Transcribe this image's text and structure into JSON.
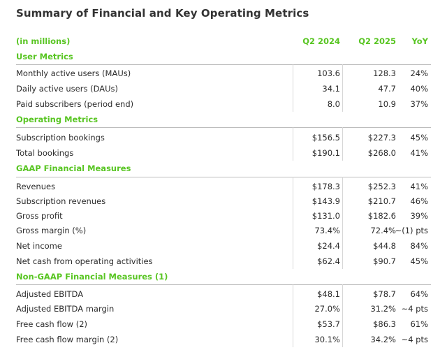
{
  "title": "Summary of Financial and Key Operating Metrics",
  "header": {
    "label": "(in millions)",
    "q2_2024": "Q2 2024",
    "q2_2025": "Q2 2025",
    "yoy": "YoY"
  },
  "sections": [
    {
      "name": "User Metrics",
      "rows": [
        {
          "label": "Monthly active users (MAUs)",
          "q2_2024": "103.6",
          "q2_2025": "128.3",
          "yoy": "24%"
        },
        {
          "label": "Daily active users (DAUs)",
          "q2_2024": "34.1",
          "q2_2025": "47.7",
          "yoy": "40%"
        },
        {
          "label": "Paid subscribers (period end)",
          "q2_2024": "8.0",
          "q2_2025": "10.9",
          "yoy": "37%"
        }
      ]
    },
    {
      "name": "Operating Metrics",
      "rows": [
        {
          "label": "Subscription bookings",
          "q2_2024": "$156.5",
          "q2_2025": "$227.3",
          "yoy": "45%"
        },
        {
          "label": "Total bookings",
          "q2_2024": "$190.1",
          "q2_2025": "$268.0",
          "yoy": "41%"
        }
      ]
    },
    {
      "name": "GAAP Financial Measures",
      "rows": [
        {
          "label": "Revenues",
          "q2_2024": "$178.3",
          "q2_2025": "$252.3",
          "yoy": "41%"
        },
        {
          "label": "Subscription revenues",
          "q2_2024": "$143.9",
          "q2_2025": "$210.7",
          "yoy": "46%"
        },
        {
          "label": "Gross profit",
          "q2_2024": "$131.0",
          "q2_2025": "$182.6",
          "yoy": "39%"
        },
        {
          "label": "Gross margin (%)",
          "q2_2024": "73.4%",
          "q2_2025": "72.4%",
          "yoy": "~(1) pts"
        },
        {
          "label": "Net income",
          "q2_2024": "$24.4",
          "q2_2025": "$44.8",
          "yoy": "84%"
        },
        {
          "label": "Net cash from operating activities",
          "q2_2024": "$62.4",
          "q2_2025": "$90.7",
          "yoy": "45%"
        }
      ]
    },
    {
      "name": "Non-GAAP Financial Measures (1)",
      "rows": [
        {
          "label": "Adjusted EBITDA",
          "q2_2024": "$48.1",
          "q2_2025": "$78.7",
          "yoy": "64%"
        },
        {
          "label": "Adjusted EBITDA margin",
          "q2_2024": "27.0%",
          "q2_2025": "31.2%",
          "yoy": "~4 pts"
        },
        {
          "label": "Free cash flow (2)",
          "q2_2024": "$53.7",
          "q2_2025": "$86.3",
          "yoy": "61%"
        },
        {
          "label": "Free cash flow margin (2)",
          "q2_2024": "30.1%",
          "q2_2025": "34.2%",
          "yoy": "~4 pts"
        }
      ]
    }
  ],
  "colors": {
    "accent": "#58c522",
    "text": "#2b2b2b",
    "rule": "#bdbdbd"
  }
}
